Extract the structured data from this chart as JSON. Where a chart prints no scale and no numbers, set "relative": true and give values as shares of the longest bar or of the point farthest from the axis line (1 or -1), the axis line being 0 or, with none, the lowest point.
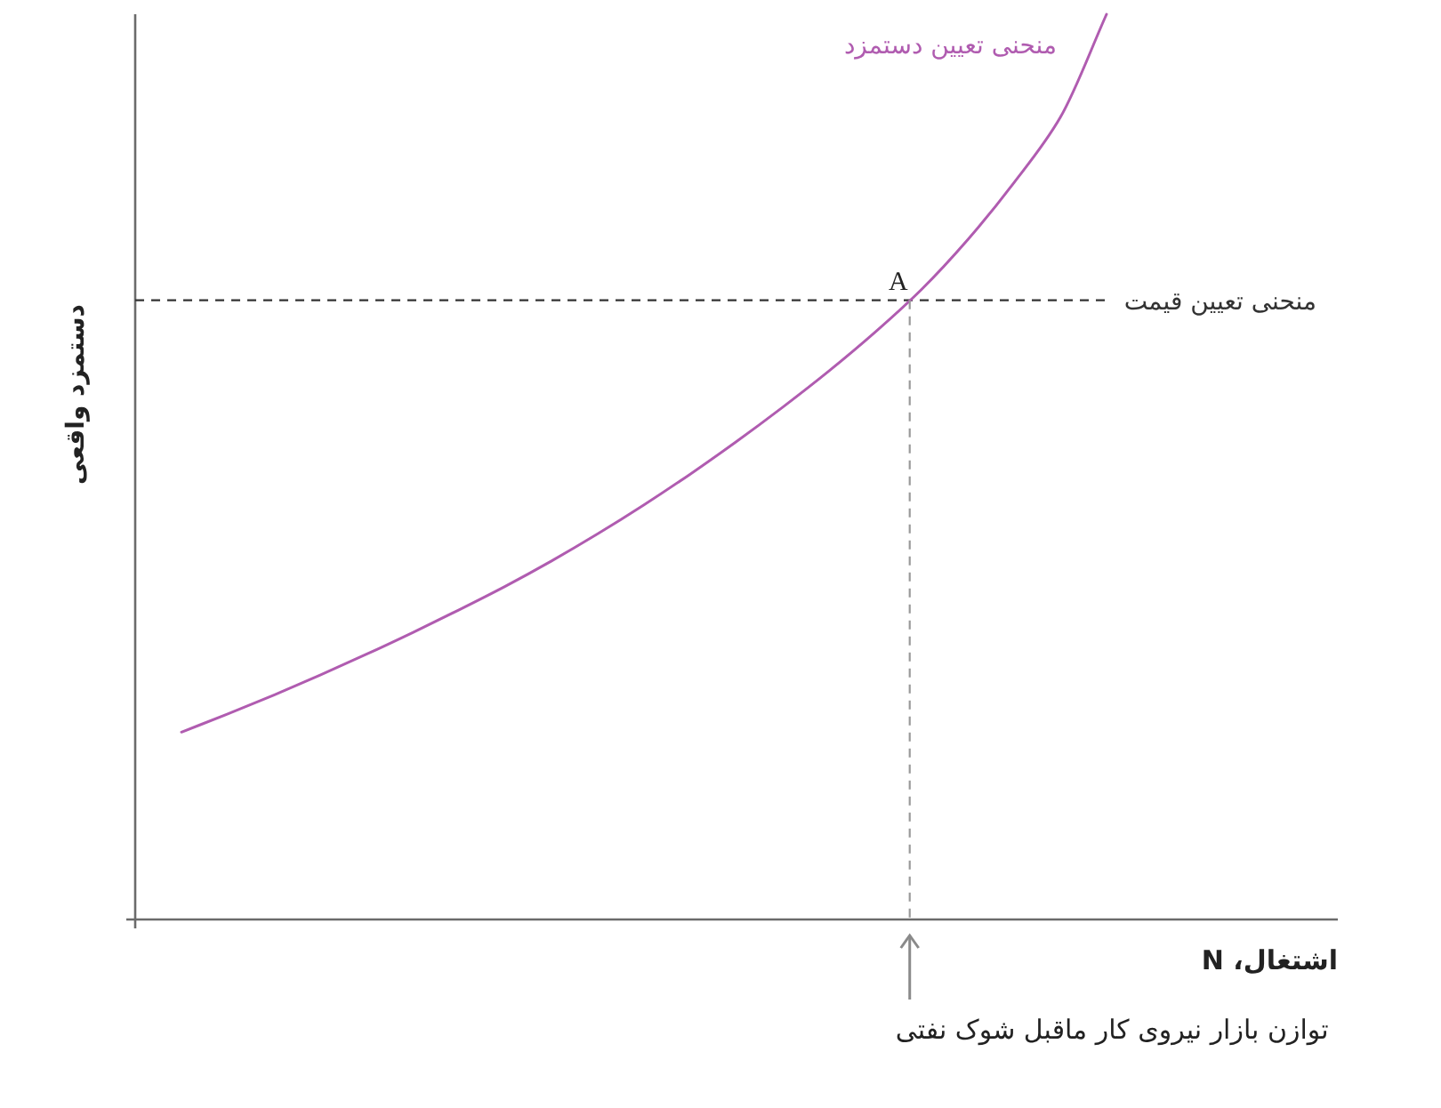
{
  "chart_data": {
    "type": "line",
    "relative": true,
    "xlabel": "اشتغال، N",
    "ylabel": "دستمزد واقعی",
    "categories": [
      null,
      null,
      null,
      null,
      null,
      null,
      null,
      null,
      null,
      null,
      null,
      null,
      null,
      null,
      null,
      null,
      null,
      null,
      null,
      null,
      null,
      null,
      null,
      null,
      null,
      null,
      null
    ],
    "series": [
      {
        "name": "منحنی تعیین دستمزد",
        "color": "#b05cb0",
        "values": [
          null,
          0.207,
          0.227,
          0.248,
          0.27,
          0.293,
          0.317,
          0.342,
          0.368,
          0.396,
          0.426,
          0.458,
          0.492,
          0.528,
          0.566,
          0.606,
          0.649,
          0.696,
          0.751,
          0.814,
          0.886,
          1,
          null,
          null,
          null,
          null,
          null
        ]
      }
    ],
    "ref_lines": [
      {
        "axis": "y",
        "value": 0.684,
        "label": "منحنی تعیین قیمت",
        "color": "#333333",
        "line_style": "dashed"
      }
    ],
    "annotations": [
      {
        "text": "A",
        "y": 0.684
      },
      "توازن بازار نیروی کار ماقبل شوک نفتی"
    ]
  }
}
